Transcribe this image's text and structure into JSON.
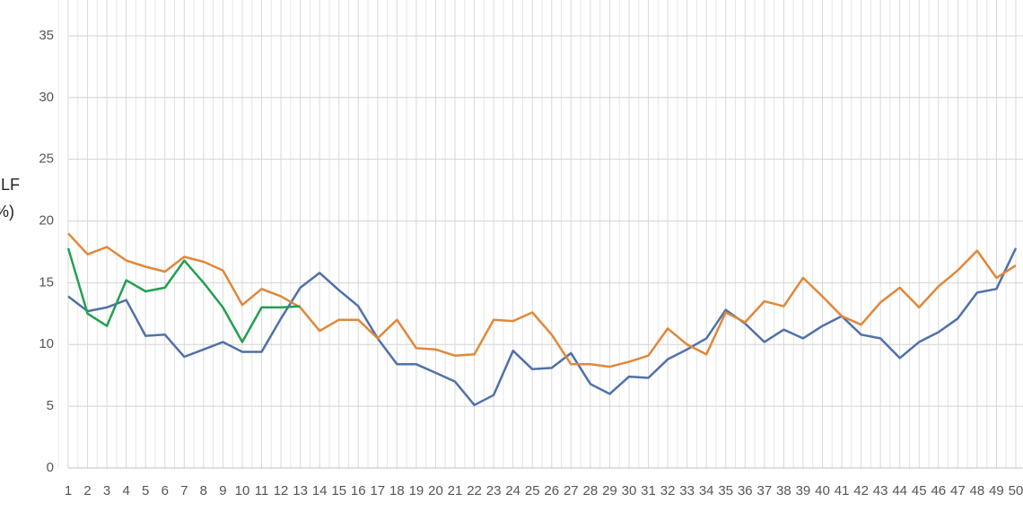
{
  "chart_data": {
    "type": "line",
    "ylabel": [
      "CLF",
      "(%)"
    ],
    "categories": [
      "1",
      "2",
      "3",
      "4",
      "5",
      "6",
      "7",
      "8",
      "9",
      "10",
      "11",
      "12",
      "13",
      "14",
      "15",
      "16",
      "17",
      "18",
      "19",
      "20",
      "21",
      "22",
      "23",
      "24",
      "25",
      "26",
      "27",
      "28",
      "29",
      "30",
      "31",
      "32",
      "33",
      "34",
      "35",
      "36",
      "37",
      "38",
      "39",
      "40",
      "41",
      "42",
      "43",
      "44",
      "45",
      "46",
      "47",
      "48",
      "49",
      "50"
    ],
    "series": [
      {
        "color": "#4f71a8",
        "values": [
          13.9,
          12.7,
          13.0,
          13.6,
          10.7,
          10.8,
          9.0,
          9.6,
          10.2,
          9.4,
          9.4,
          12.1,
          14.6,
          15.8,
          14.4,
          13.1,
          10.5,
          8.4,
          8.4,
          7.7,
          7.0,
          5.1,
          5.9,
          9.5,
          8.0,
          8.1,
          9.3,
          6.8,
          6.0,
          7.4,
          7.3,
          8.8,
          9.6,
          10.5,
          12.8,
          11.7,
          10.2,
          11.2,
          10.5,
          11.5,
          12.3,
          10.8,
          10.5,
          8.9,
          10.2,
          11.0,
          12.1,
          14.2,
          14.5,
          17.8
        ]
      },
      {
        "color": "#e0883a",
        "values": [
          19.0,
          17.3,
          17.9,
          16.8,
          16.3,
          15.9,
          17.1,
          16.7,
          16.0,
          13.2,
          14.5,
          13.9,
          13.0,
          11.1,
          12.0,
          12.0,
          10.5,
          12.0,
          9.7,
          9.6,
          9.1,
          9.2,
          12.0,
          11.9,
          12.6,
          10.8,
          8.4,
          8.4,
          8.2,
          8.6,
          9.1,
          11.3,
          10.0,
          9.2,
          12.6,
          11.8,
          13.5,
          13.1,
          15.4,
          13.9,
          12.3,
          11.6,
          13.4,
          14.6,
          13.0,
          14.7,
          16.0,
          17.6,
          15.4,
          16.4
        ]
      },
      {
        "color": "#21a050",
        "values": [
          17.8,
          12.5,
          11.5,
          15.2,
          14.3,
          14.6,
          16.8,
          15.0,
          13.0,
          10.2,
          13.0,
          13.0,
          13.1,
          null,
          null,
          null,
          null,
          null,
          null,
          null,
          null,
          null,
          null,
          null,
          null,
          null,
          null,
          null,
          null,
          null,
          null,
          null,
          null,
          null,
          null,
          null,
          null,
          null,
          null,
          null,
          null,
          null,
          null,
          null,
          null,
          null,
          null,
          null,
          null,
          null
        ]
      }
    ],
    "ylim": [
      0,
      37.9
    ],
    "yticks": [
      0,
      5,
      10,
      15,
      20,
      25,
      30,
      35
    ],
    "grid": true
  }
}
